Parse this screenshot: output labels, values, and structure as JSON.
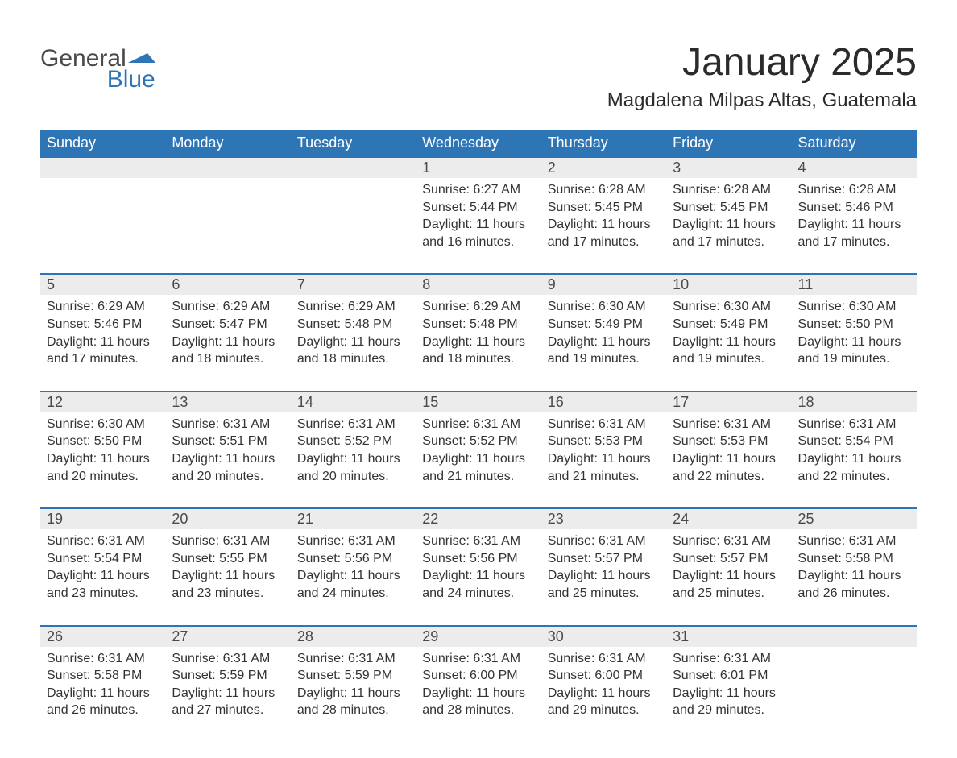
{
  "brand": {
    "word1": "General",
    "word2": "Blue",
    "arrow_color": "#2e75b6",
    "word1_color": "#4a4a4a",
    "word2_color": "#2e75b6"
  },
  "title": "January 2025",
  "location": "Magdalena Milpas Altas, Guatemala",
  "colors": {
    "header_bg": "#2e75b6",
    "header_text": "#ffffff",
    "daynum_bg": "#ececec",
    "daynum_border_top": "#2e75b6",
    "body_text": "#333333",
    "page_bg": "#ffffff"
  },
  "typography": {
    "title_fontsize": 48,
    "location_fontsize": 24,
    "weekday_fontsize": 18,
    "daynum_fontsize": 18,
    "detail_fontsize": 16
  },
  "weekdays": [
    "Sunday",
    "Monday",
    "Tuesday",
    "Wednesday",
    "Thursday",
    "Friday",
    "Saturday"
  ],
  "labels": {
    "sunrise": "Sunrise:",
    "sunset": "Sunset:",
    "daylight": "Daylight:",
    "and": "and",
    "minutes_suffix": "minutes."
  },
  "weeks": [
    [
      null,
      null,
      null,
      {
        "day": "1",
        "sunrise": "6:27 AM",
        "sunset": "5:44 PM",
        "daylight_hours": "11 hours",
        "daylight_minutes": "16"
      },
      {
        "day": "2",
        "sunrise": "6:28 AM",
        "sunset": "5:45 PM",
        "daylight_hours": "11 hours",
        "daylight_minutes": "17"
      },
      {
        "day": "3",
        "sunrise": "6:28 AM",
        "sunset": "5:45 PM",
        "daylight_hours": "11 hours",
        "daylight_minutes": "17"
      },
      {
        "day": "4",
        "sunrise": "6:28 AM",
        "sunset": "5:46 PM",
        "daylight_hours": "11 hours",
        "daylight_minutes": "17"
      }
    ],
    [
      {
        "day": "5",
        "sunrise": "6:29 AM",
        "sunset": "5:46 PM",
        "daylight_hours": "11 hours",
        "daylight_minutes": "17"
      },
      {
        "day": "6",
        "sunrise": "6:29 AM",
        "sunset": "5:47 PM",
        "daylight_hours": "11 hours",
        "daylight_minutes": "18"
      },
      {
        "day": "7",
        "sunrise": "6:29 AM",
        "sunset": "5:48 PM",
        "daylight_hours": "11 hours",
        "daylight_minutes": "18"
      },
      {
        "day": "8",
        "sunrise": "6:29 AM",
        "sunset": "5:48 PM",
        "daylight_hours": "11 hours",
        "daylight_minutes": "18"
      },
      {
        "day": "9",
        "sunrise": "6:30 AM",
        "sunset": "5:49 PM",
        "daylight_hours": "11 hours",
        "daylight_minutes": "19"
      },
      {
        "day": "10",
        "sunrise": "6:30 AM",
        "sunset": "5:49 PM",
        "daylight_hours": "11 hours",
        "daylight_minutes": "19"
      },
      {
        "day": "11",
        "sunrise": "6:30 AM",
        "sunset": "5:50 PM",
        "daylight_hours": "11 hours",
        "daylight_minutes": "19"
      }
    ],
    [
      {
        "day": "12",
        "sunrise": "6:30 AM",
        "sunset": "5:50 PM",
        "daylight_hours": "11 hours",
        "daylight_minutes": "20"
      },
      {
        "day": "13",
        "sunrise": "6:31 AM",
        "sunset": "5:51 PM",
        "daylight_hours": "11 hours",
        "daylight_minutes": "20"
      },
      {
        "day": "14",
        "sunrise": "6:31 AM",
        "sunset": "5:52 PM",
        "daylight_hours": "11 hours",
        "daylight_minutes": "20"
      },
      {
        "day": "15",
        "sunrise": "6:31 AM",
        "sunset": "5:52 PM",
        "daylight_hours": "11 hours",
        "daylight_minutes": "21"
      },
      {
        "day": "16",
        "sunrise": "6:31 AM",
        "sunset": "5:53 PM",
        "daylight_hours": "11 hours",
        "daylight_minutes": "21"
      },
      {
        "day": "17",
        "sunrise": "6:31 AM",
        "sunset": "5:53 PM",
        "daylight_hours": "11 hours",
        "daylight_minutes": "22"
      },
      {
        "day": "18",
        "sunrise": "6:31 AM",
        "sunset": "5:54 PM",
        "daylight_hours": "11 hours",
        "daylight_minutes": "22"
      }
    ],
    [
      {
        "day": "19",
        "sunrise": "6:31 AM",
        "sunset": "5:54 PM",
        "daylight_hours": "11 hours",
        "daylight_minutes": "23"
      },
      {
        "day": "20",
        "sunrise": "6:31 AM",
        "sunset": "5:55 PM",
        "daylight_hours": "11 hours",
        "daylight_minutes": "23"
      },
      {
        "day": "21",
        "sunrise": "6:31 AM",
        "sunset": "5:56 PM",
        "daylight_hours": "11 hours",
        "daylight_minutes": "24"
      },
      {
        "day": "22",
        "sunrise": "6:31 AM",
        "sunset": "5:56 PM",
        "daylight_hours": "11 hours",
        "daylight_minutes": "24"
      },
      {
        "day": "23",
        "sunrise": "6:31 AM",
        "sunset": "5:57 PM",
        "daylight_hours": "11 hours",
        "daylight_minutes": "25"
      },
      {
        "day": "24",
        "sunrise": "6:31 AM",
        "sunset": "5:57 PM",
        "daylight_hours": "11 hours",
        "daylight_minutes": "25"
      },
      {
        "day": "25",
        "sunrise": "6:31 AM",
        "sunset": "5:58 PM",
        "daylight_hours": "11 hours",
        "daylight_minutes": "26"
      }
    ],
    [
      {
        "day": "26",
        "sunrise": "6:31 AM",
        "sunset": "5:58 PM",
        "daylight_hours": "11 hours",
        "daylight_minutes": "26"
      },
      {
        "day": "27",
        "sunrise": "6:31 AM",
        "sunset": "5:59 PM",
        "daylight_hours": "11 hours",
        "daylight_minutes": "27"
      },
      {
        "day": "28",
        "sunrise": "6:31 AM",
        "sunset": "5:59 PM",
        "daylight_hours": "11 hours",
        "daylight_minutes": "28"
      },
      {
        "day": "29",
        "sunrise": "6:31 AM",
        "sunset": "6:00 PM",
        "daylight_hours": "11 hours",
        "daylight_minutes": "28"
      },
      {
        "day": "30",
        "sunrise": "6:31 AM",
        "sunset": "6:00 PM",
        "daylight_hours": "11 hours",
        "daylight_minutes": "29"
      },
      {
        "day": "31",
        "sunrise": "6:31 AM",
        "sunset": "6:01 PM",
        "daylight_hours": "11 hours",
        "daylight_minutes": "29"
      },
      null
    ]
  ]
}
